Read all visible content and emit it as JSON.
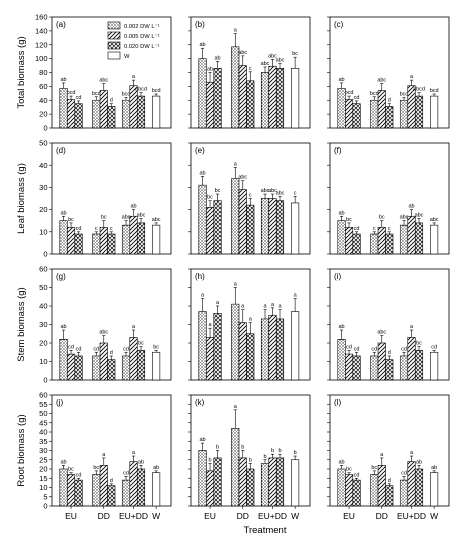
{
  "chart_data": {
    "type": "bar",
    "xlabel": "Treatment",
    "groups": [
      "EU",
      "DD",
      "EU+DD",
      "W"
    ],
    "series": [
      {
        "name": "0.002 DW L⁻¹",
        "pattern": "dots"
      },
      {
        "name": "0.005 DW L⁻¹",
        "pattern": "diag"
      },
      {
        "name": "0.020 DW L⁻¹",
        "pattern": "cross"
      },
      {
        "name": "W",
        "pattern": "none"
      }
    ],
    "rows": [
      {
        "ylabel": "Total biomass (g)",
        "ylim": [
          0,
          160
        ],
        "yticks": [
          0,
          20,
          40,
          60,
          80,
          100,
          120,
          140,
          160
        ]
      },
      {
        "ylabel": "Leaf biomass (g)",
        "ylim": [
          0,
          50
        ],
        "yticks": [
          0,
          10,
          20,
          30,
          40,
          50
        ]
      },
      {
        "ylabel": "Stem biomass (g)",
        "ylim": [
          0,
          60
        ],
        "yticks": [
          0,
          10,
          20,
          30,
          40,
          50,
          60
        ]
      },
      {
        "ylabel": "Root biomass (g)",
        "ylim": [
          0,
          60
        ],
        "yticks": [
          0,
          5,
          10,
          15,
          20,
          25,
          30,
          35,
          40,
          45,
          50,
          55,
          60
        ]
      }
    ],
    "panels": [
      {
        "label": "(a)",
        "row": 0,
        "col": 0,
        "values": [
          [
            57,
            41,
            35
          ],
          [
            40,
            54,
            31
          ],
          [
            40,
            61,
            46
          ],
          [
            46
          ]
        ],
        "errors": [
          [
            8,
            5,
            4
          ],
          [
            5,
            10,
            4
          ],
          [
            4,
            8,
            5
          ],
          [
            3
          ]
        ],
        "letters": [
          [
            "ab",
            "bcd",
            "cd"
          ],
          [
            "bcd",
            "abc",
            "d"
          ],
          [
            "bcd",
            "a",
            "abcd"
          ],
          [
            "bcd"
          ]
        ]
      },
      {
        "label": "(b)",
        "row": 0,
        "col": 1,
        "values": [
          [
            100,
            66,
            86
          ],
          [
            117,
            90,
            68
          ],
          [
            80,
            89,
            86
          ],
          [
            86
          ]
        ],
        "errors": [
          [
            15,
            14,
            10
          ],
          [
            19,
            14,
            13
          ],
          [
            8,
            10,
            7
          ],
          [
            16
          ]
        ],
        "letters": [
          [
            "ab",
            "ab",
            "ab"
          ],
          [
            "a",
            "abc",
            "c"
          ],
          [
            "abc",
            "abc",
            "abc"
          ],
          [
            "bc"
          ]
        ]
      },
      {
        "label": "(c)",
        "row": 0,
        "col": 2,
        "values": [
          [
            57,
            41,
            35
          ],
          [
            40,
            54,
            31
          ],
          [
            40,
            61,
            46
          ],
          [
            46
          ]
        ],
        "errors": [
          [
            8,
            5,
            4
          ],
          [
            5,
            10,
            4
          ],
          [
            4,
            8,
            5
          ],
          [
            3
          ]
        ],
        "letters": [
          [
            "ab",
            "bcd",
            "cd"
          ],
          [
            "bcd",
            "abc",
            "d"
          ],
          [
            "bcd",
            "a",
            "abcd"
          ],
          [
            "bcd"
          ]
        ]
      },
      {
        "label": "(d)",
        "row": 1,
        "col": 0,
        "values": [
          [
            15,
            12,
            9
          ],
          [
            9,
            12,
            9
          ],
          [
            13,
            17,
            14
          ],
          [
            13
          ]
        ],
        "errors": [
          [
            2,
            2,
            1
          ],
          [
            1,
            3,
            1
          ],
          [
            2,
            3,
            2
          ],
          [
            1
          ]
        ],
        "letters": [
          [
            "ab",
            "bc",
            "cd"
          ],
          [
            "c",
            "bc",
            "c"
          ],
          [
            "abc",
            "ab",
            "abc"
          ],
          [
            "abc"
          ]
        ]
      },
      {
        "label": "(e)",
        "row": 1,
        "col": 1,
        "values": [
          [
            31,
            21,
            24
          ],
          [
            34,
            29,
            22
          ],
          [
            25,
            25,
            24
          ],
          [
            23
          ]
        ],
        "errors": [
          [
            4,
            3,
            3
          ],
          [
            5,
            4,
            3
          ],
          [
            2,
            2,
            2
          ],
          [
            3
          ]
        ],
        "letters": [
          [
            "ab",
            "bc",
            "bc"
          ],
          [
            "a",
            "abc",
            "c"
          ],
          [
            "abc",
            "abc",
            "abc"
          ],
          [
            "c"
          ]
        ]
      },
      {
        "label": "(f)",
        "row": 1,
        "col": 2,
        "values": [
          [
            15,
            12,
            9
          ],
          [
            9,
            12,
            9
          ],
          [
            13,
            17,
            14
          ],
          [
            13
          ]
        ],
        "errors": [
          [
            2,
            2,
            1
          ],
          [
            1,
            3,
            1
          ],
          [
            2,
            3,
            2
          ],
          [
            1
          ]
        ],
        "letters": [
          [
            "ab",
            "bc",
            "cd"
          ],
          [
            "c",
            "bc",
            "c"
          ],
          [
            "abc",
            "ab",
            "abc"
          ],
          [
            "abc"
          ]
        ]
      },
      {
        "label": "(g)",
        "row": 2,
        "col": 0,
        "values": [
          [
            22,
            14,
            13
          ],
          [
            13,
            20,
            11
          ],
          [
            13,
            23,
            16
          ],
          [
            15
          ]
        ],
        "errors": [
          [
            5,
            2,
            2
          ],
          [
            2,
            4,
            2
          ],
          [
            2,
            4,
            2
          ],
          [
            1
          ]
        ],
        "letters": [
          [
            "ab",
            "cd",
            "cd"
          ],
          [
            "cd",
            "abc",
            "d"
          ],
          [
            "cd",
            "a",
            "bc"
          ],
          [
            "bc"
          ]
        ]
      },
      {
        "label": "(h)",
        "row": 2,
        "col": 1,
        "values": [
          [
            37,
            23,
            36
          ],
          [
            41,
            31,
            25
          ],
          [
            33,
            35,
            33
          ],
          [
            37
          ]
        ],
        "errors": [
          [
            7,
            5,
            4
          ],
          [
            9,
            7,
            6
          ],
          [
            5,
            4,
            5
          ],
          [
            7
          ]
        ],
        "letters": [
          [
            "a",
            "a",
            "a"
          ],
          [
            "a",
            "a",
            "a"
          ],
          [
            "a",
            "a",
            "a"
          ],
          [
            "a"
          ]
        ]
      },
      {
        "label": "(i)",
        "row": 2,
        "col": 2,
        "values": [
          [
            22,
            14,
            13
          ],
          [
            13,
            20,
            11
          ],
          [
            13,
            23,
            16
          ],
          [
            15
          ]
        ],
        "errors": [
          [
            5,
            2,
            2
          ],
          [
            2,
            4,
            2
          ],
          [
            2,
            4,
            2
          ],
          [
            1
          ]
        ],
        "letters": [
          [
            "ab",
            "cd",
            "cd"
          ],
          [
            "cd",
            "abc",
            "d"
          ],
          [
            "cd",
            "a",
            "bc"
          ],
          [
            "cd"
          ]
        ]
      },
      {
        "label": "(j)",
        "row": 3,
        "col": 0,
        "values": [
          [
            20,
            17,
            14
          ],
          [
            17,
            22,
            11
          ],
          [
            14,
            24,
            20
          ],
          [
            18
          ]
        ],
        "errors": [
          [
            2,
            1,
            1
          ],
          [
            2,
            4,
            1
          ],
          [
            2,
            3,
            2
          ],
          [
            1
          ]
        ],
        "letters": [
          [
            "ab",
            "bc",
            "cd"
          ],
          [
            "bc",
            "a",
            "d"
          ],
          [
            "cd",
            "a",
            "ab"
          ],
          [
            "ab"
          ]
        ]
      },
      {
        "label": "(k)",
        "row": 3,
        "col": 1,
        "values": [
          [
            30,
            19,
            26
          ],
          [
            42,
            26,
            20
          ],
          [
            23,
            26,
            26
          ],
          [
            25
          ]
        ],
        "errors": [
          [
            4,
            4,
            4
          ],
          [
            10,
            4,
            3
          ],
          [
            2,
            2,
            2
          ],
          [
            2
          ]
        ],
        "letters": [
          [
            "ab",
            "b",
            "b"
          ],
          [
            "a",
            "b",
            "b"
          ],
          [
            "b",
            "b",
            "b"
          ],
          [
            "b"
          ]
        ]
      },
      {
        "label": "(l)",
        "row": 3,
        "col": 2,
        "values": [
          [
            20,
            17,
            14
          ],
          [
            17,
            22,
            11
          ],
          [
            14,
            24,
            20
          ],
          [
            18
          ]
        ],
        "errors": [
          [
            2,
            1,
            1
          ],
          [
            2,
            4,
            1
          ],
          [
            2,
            3,
            2
          ],
          [
            1
          ]
        ],
        "letters": [
          [
            "ab",
            "bc",
            "cd"
          ],
          [
            "bc",
            "a",
            "d"
          ],
          [
            "cd",
            "a",
            "ab"
          ],
          [
            "ab"
          ]
        ]
      }
    ]
  }
}
